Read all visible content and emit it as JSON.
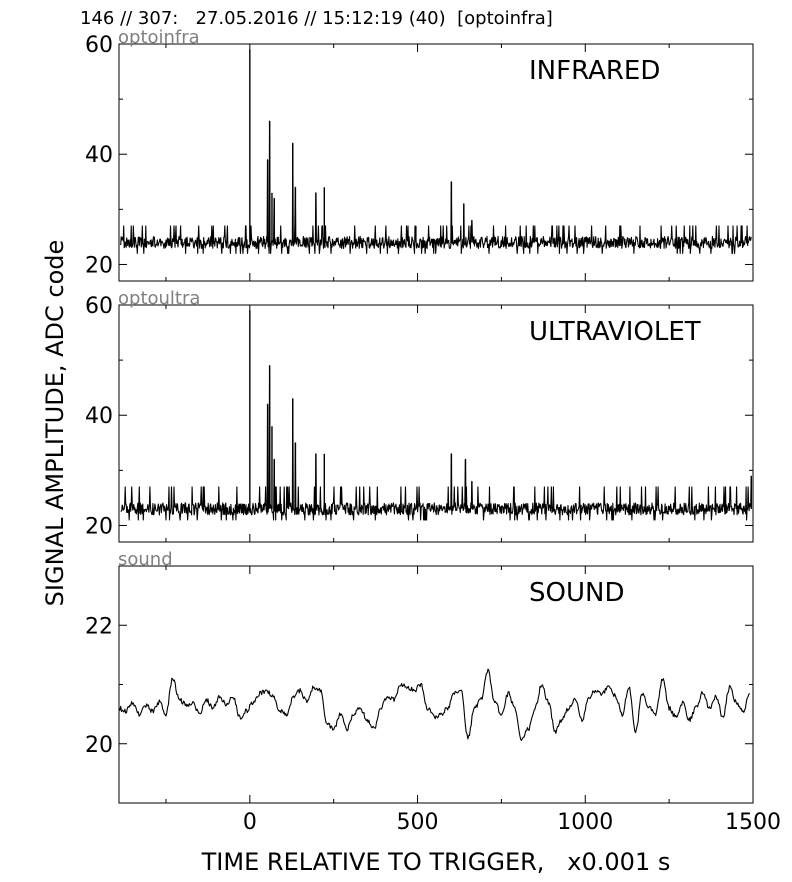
{
  "header": {
    "text": "146 // 307:   27.05.2016 // 15:12:19 (40)  [optoinfra]"
  },
  "y_axis_label": "SIGNAL AMPLITUDE,  ADC code",
  "x_axis_label": "TIME RELATIVE TO TRIGGER,   x0.001 s",
  "colors": {
    "trace": "#000000",
    "channel_label": "#808080",
    "frame": "#000000"
  },
  "chart_data": [
    {
      "type": "line",
      "channel": "optoinfra",
      "title": "INFRARED",
      "xlim": [
        -390,
        1500
      ],
      "ylim": [
        17,
        60
      ],
      "xticks": [
        0,
        500,
        1000,
        1500
      ],
      "yticks": [
        20,
        40,
        60
      ],
      "baseline": 24,
      "noise": {
        "low": 22,
        "high": 27
      },
      "spikes": [
        [
          0,
          59
        ],
        [
          53,
          39
        ],
        [
          59,
          46
        ],
        [
          66,
          33
        ],
        [
          73,
          32
        ],
        [
          128,
          42
        ],
        [
          136,
          34
        ],
        [
          197,
          33
        ],
        [
          222,
          34
        ],
        [
          495,
          27
        ],
        [
          601,
          35
        ],
        [
          638,
          31
        ],
        [
          662,
          28
        ]
      ]
    },
    {
      "type": "line",
      "channel": "optoultra",
      "title": "ULTRAVIOLET",
      "xlim": [
        -390,
        1500
      ],
      "ylim": [
        17,
        60
      ],
      "xticks": [
        0,
        500,
        1000,
        1500
      ],
      "yticks": [
        20,
        40,
        60
      ],
      "baseline": 23,
      "noise": {
        "low": 21,
        "high": 27
      },
      "spikes": [
        [
          0,
          59
        ],
        [
          53,
          42
        ],
        [
          59,
          49
        ],
        [
          66,
          38
        ],
        [
          73,
          32
        ],
        [
          128,
          43
        ],
        [
          136,
          35
        ],
        [
          197,
          33
        ],
        [
          222,
          33
        ],
        [
          601,
          33
        ],
        [
          643,
          32
        ],
        [
          662,
          28
        ],
        [
          1495,
          29
        ]
      ]
    },
    {
      "type": "line",
      "channel": "sound",
      "title": "SOUND",
      "xlim": [
        -390,
        1500
      ],
      "ylim": [
        19,
        23
      ],
      "xticks": [
        0,
        500,
        1000,
        1500
      ],
      "yticks": [
        20,
        22
      ],
      "x": [
        -390,
        -370,
        -350,
        -330,
        -310,
        -290,
        -270,
        -250,
        -230,
        -210,
        -190,
        -170,
        -150,
        -130,
        -110,
        -90,
        -70,
        -50,
        -30,
        -10,
        10,
        30,
        50,
        70,
        90,
        110,
        130,
        150,
        170,
        190,
        210,
        230,
        250,
        270,
        290,
        310,
        330,
        350,
        370,
        390,
        410,
        430,
        450,
        470,
        490,
        510,
        530,
        550,
        570,
        590,
        610,
        630,
        650,
        670,
        690,
        710,
        730,
        750,
        770,
        790,
        810,
        830,
        850,
        870,
        890,
        910,
        930,
        950,
        970,
        990,
        1010,
        1030,
        1050,
        1070,
        1090,
        1110,
        1130,
        1150,
        1170,
        1190,
        1210,
        1230,
        1250,
        1270,
        1290,
        1310,
        1330,
        1350,
        1370,
        1390,
        1410,
        1430,
        1450,
        1470,
        1490
      ],
      "y": [
        20.6,
        20.55,
        20.7,
        20.5,
        20.65,
        20.55,
        20.7,
        20.5,
        21.1,
        20.75,
        20.65,
        20.7,
        20.5,
        20.75,
        20.6,
        20.8,
        20.65,
        20.8,
        20.45,
        20.55,
        20.7,
        20.85,
        20.9,
        20.8,
        20.55,
        20.5,
        20.8,
        20.9,
        20.7,
        20.95,
        20.9,
        20.35,
        20.25,
        20.5,
        20.25,
        20.5,
        20.6,
        20.4,
        20.25,
        20.6,
        20.8,
        20.75,
        21.0,
        20.95,
        20.9,
        21.0,
        20.6,
        20.45,
        20.5,
        20.6,
        20.85,
        20.9,
        20.1,
        20.6,
        20.75,
        21.25,
        20.7,
        20.5,
        20.85,
        20.6,
        20.05,
        20.25,
        20.6,
        21.0,
        20.7,
        20.2,
        20.4,
        20.6,
        20.75,
        20.4,
        20.75,
        20.9,
        20.85,
        20.95,
        20.8,
        20.5,
        20.95,
        20.2,
        20.85,
        20.6,
        20.5,
        21.1,
        20.6,
        20.45,
        20.7,
        20.4,
        20.6,
        20.85,
        20.6,
        20.8,
        20.45,
        20.95,
        20.7,
        20.55,
        20.85
      ]
    }
  ]
}
